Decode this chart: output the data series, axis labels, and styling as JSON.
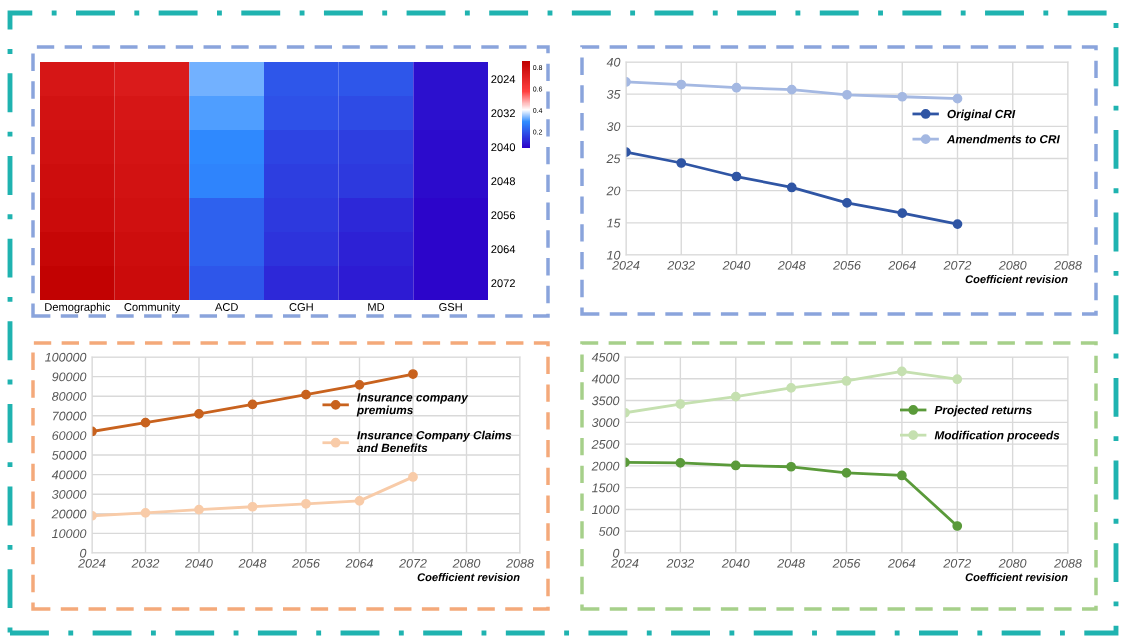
{
  "chart_data": [
    {
      "type": "heatmap",
      "categories": [
        "Demographic",
        "Community",
        "ACD",
        "CGH",
        "MD",
        "GSH"
      ],
      "y_categories": [
        "2024",
        "2032",
        "2040",
        "2048",
        "2056",
        "2064",
        "2072"
      ],
      "cells": [
        [
          0.76,
          0.74,
          0.33,
          0.2,
          0.2,
          0.08
        ],
        [
          0.78,
          0.76,
          0.31,
          0.19,
          0.18,
          0.08
        ],
        [
          0.79,
          0.77,
          0.29,
          0.17,
          0.16,
          0.07
        ],
        [
          0.8,
          0.78,
          0.28,
          0.16,
          0.15,
          0.07
        ],
        [
          0.81,
          0.79,
          0.22,
          0.15,
          0.12,
          0.06
        ],
        [
          0.83,
          0.8,
          0.22,
          0.14,
          0.11,
          0.06
        ],
        [
          0.85,
          0.81,
          0.2,
          0.12,
          0.1,
          0.06
        ]
      ],
      "clim": [
        0.05,
        0.86
      ],
      "cticks": [
        0.2,
        0.4,
        0.6,
        0.8
      ]
    },
    {
      "type": "line",
      "xlabel": "Coefficient revision",
      "x": [
        2024,
        2032,
        2040,
        2048,
        2056,
        2064,
        2072
      ],
      "xlim": [
        2024,
        2088
      ],
      "xticks": [
        2024,
        2032,
        2040,
        2048,
        2056,
        2064,
        2072,
        2080,
        2088
      ],
      "ylim": [
        10,
        40
      ],
      "yticks": [
        10,
        15,
        20,
        25,
        30,
        35,
        40
      ],
      "grid": true,
      "legend": "right",
      "marker": "circle",
      "series": [
        {
          "name": "Original CRI",
          "color": "#2f55a4",
          "values": [
            26,
            24.3,
            22.2,
            20.5,
            18.1,
            16.5,
            14.8
          ]
        },
        {
          "name": "Amendments to CRI",
          "color": "#a4b8e2",
          "values": [
            36.9,
            36.5,
            36,
            35.7,
            34.9,
            34.6,
            34.3
          ]
        }
      ]
    },
    {
      "type": "line",
      "xlabel": "Coefficient revision",
      "x": [
        2024,
        2032,
        2040,
        2048,
        2056,
        2064,
        2072
      ],
      "xlim": [
        2024,
        2088
      ],
      "xticks": [
        2024,
        2032,
        2040,
        2048,
        2056,
        2064,
        2072,
        2080,
        2088
      ],
      "ylim": [
        0,
        100000
      ],
      "yticks": [
        0,
        10000,
        20000,
        30000,
        40000,
        50000,
        60000,
        70000,
        80000,
        90000,
        100000
      ],
      "grid": true,
      "legend": "right",
      "marker": "circle",
      "series": [
        {
          "name": "Insurance company\npremiums",
          "color": "#c8621e",
          "values": [
            62000,
            66500,
            71000,
            75800,
            80800,
            85800,
            91300
          ]
        },
        {
          "name": "Insurance Company Claims\nand Benefits",
          "color": "#f8cba8",
          "values": [
            19000,
            20500,
            22100,
            23600,
            25100,
            26600,
            38800
          ]
        }
      ]
    },
    {
      "type": "line",
      "xlabel": "Coefficient revision",
      "x": [
        2024,
        2032,
        2040,
        2048,
        2056,
        2064,
        2072
      ],
      "xlim": [
        2024,
        2088
      ],
      "xticks": [
        2024,
        2032,
        2040,
        2048,
        2056,
        2064,
        2072,
        2080,
        2088
      ],
      "ylim": [
        0,
        4500
      ],
      "yticks": [
        0,
        500,
        1000,
        1500,
        2000,
        2500,
        3000,
        3500,
        4000,
        4500
      ],
      "grid": true,
      "legend": "right",
      "marker": "circle",
      "series": [
        {
          "name": "Projected returns",
          "color": "#5a9a3a",
          "values": [
            2080,
            2070,
            2010,
            1980,
            1840,
            1780,
            620
          ]
        },
        {
          "name": "Modification proceeds",
          "color": "#c5e0b0",
          "values": [
            3220,
            3420,
            3590,
            3790,
            3950,
            4170,
            3990
          ]
        }
      ]
    }
  ]
}
